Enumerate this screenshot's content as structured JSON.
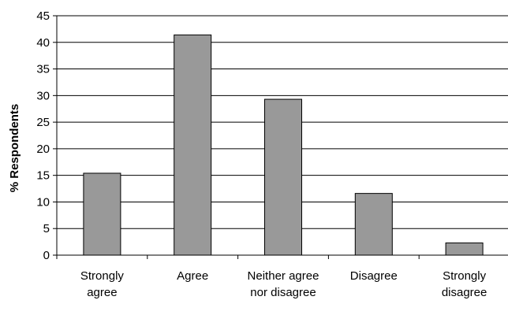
{
  "chart_data": {
    "type": "bar",
    "title": "",
    "xlabel": "",
    "ylabel": "% Respondents",
    "ylim": [
      0,
      45
    ],
    "y_ticks": [
      0,
      5,
      10,
      15,
      20,
      25,
      30,
      35,
      40,
      45
    ],
    "grid": true,
    "categories": [
      [
        "Strongly",
        "agree"
      ],
      [
        "Agree"
      ],
      [
        "Neither agree",
        "nor disagree"
      ],
      [
        "Disagree"
      ],
      [
        "Strongly",
        "disagree"
      ]
    ],
    "values": [
      15.4,
      41.4,
      29.3,
      11.6,
      2.3
    ],
    "colors": {
      "bar_fill": "#999999",
      "bar_stroke": "#000000",
      "grid": "#000000"
    }
  }
}
